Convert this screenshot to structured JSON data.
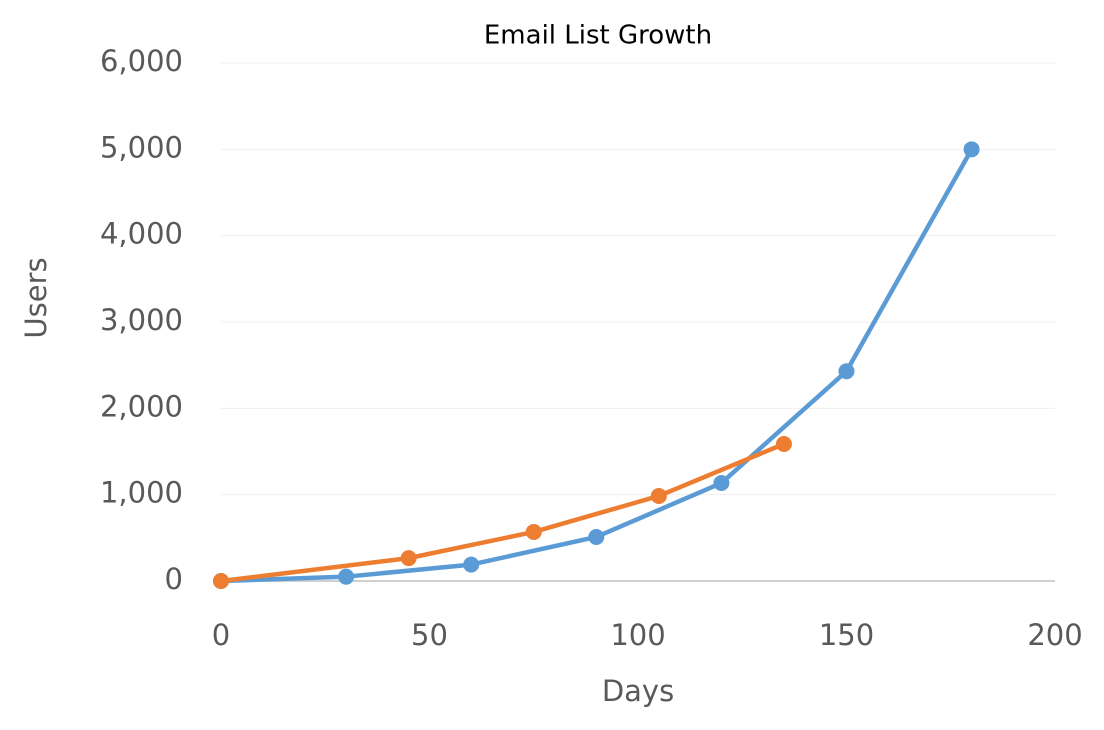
{
  "chart_data": {
    "type": "scatter-line",
    "title": "Email List Growth",
    "x_label": "Days",
    "y_label": "Users",
    "series": [
      {
        "color": "#5b9bd5",
        "x": [
          0,
          30,
          60,
          90,
          120,
          150,
          180
        ],
        "values": [
          0,
          50,
          190,
          510,
          1135,
          2430,
          5000
        ]
      },
      {
        "color": "#ed7d31",
        "x": [
          0,
          45,
          75,
          105,
          135
        ],
        "values": [
          0,
          265,
          568,
          985,
          1587
        ]
      }
    ],
    "xlim": [
      0,
      200
    ],
    "xticks": [
      0,
      50,
      100,
      150,
      200
    ],
    "ylim": [
      0,
      6000
    ],
    "yticks": [
      0,
      {
        "value": 1000,
        "label": "1,000"
      },
      {
        "value": 2000,
        "label": "2,000"
      },
      {
        "value": 3000,
        "label": "3,000"
      },
      {
        "value": 4000,
        "label": "4,000"
      },
      {
        "value": 5000,
        "label": "5,000"
      },
      {
        "value": 6000,
        "label": "6,000"
      }
    ],
    "grid": true
  }
}
